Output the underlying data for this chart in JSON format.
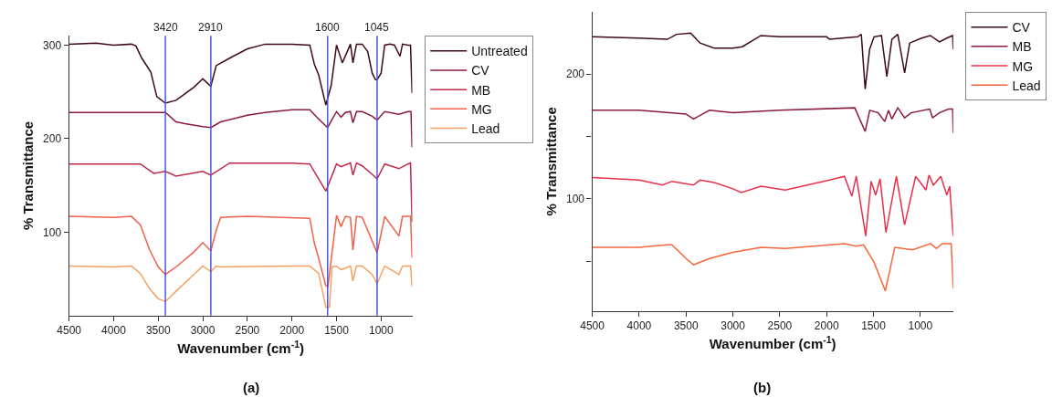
{
  "chart_data": [
    {
      "type": "line",
      "xlabel": "Wavenumber (cm$^{-1}$)",
      "ylabel": "% Transmittance",
      "xlim": [
        4500,
        650
      ],
      "ylim": [
        11,
        310
      ],
      "xticks": [
        4500,
        4000,
        3500,
        3000,
        2500,
        2000,
        1500,
        1000
      ],
      "yticks": [
        100,
        200,
        300
      ],
      "legend": "top right",
      "series": [
        {
          "name": "Untreated",
          "color": "#3d0a14",
          "x": [
            4500,
            4200,
            4000,
            3800,
            3750,
            3684,
            3583,
            3516,
            3420,
            3300,
            3100,
            3000,
            2910,
            2850,
            2700,
            2500,
            2300,
            2000,
            1800,
            1750,
            1700,
            1620,
            1560,
            1500,
            1435,
            1380,
            1344,
            1316,
            1276,
            1212,
            1150,
            1100,
            1064,
            1045,
            1000,
            960,
            900,
            850,
            788,
            760,
            700,
            670,
            653
          ],
          "values": [
            301,
            302,
            300,
            301,
            299,
            286,
            271,
            245,
            238,
            241,
            255,
            264,
            256,
            278,
            286,
            296,
            301,
            301,
            300,
            280,
            268,
            236,
            257,
            300,
            281,
            293,
            301,
            281,
            301,
            301,
            293,
            270,
            263,
            263,
            270,
            300,
            301,
            300,
            288,
            301,
            300,
            300,
            249
          ]
        },
        {
          "name": "CV",
          "color": "#8b1a3a",
          "x": [
            4500,
            4000,
            3600,
            3420,
            3300,
            3200,
            3000,
            2910,
            2800,
            2500,
            2300,
            2000,
            1800,
            1700,
            1600,
            1500,
            1450,
            1400,
            1344,
            1316,
            1276,
            1212,
            1100,
            1045,
            960,
            800,
            700,
            665,
            653
          ],
          "values": [
            228,
            228,
            228,
            228,
            218,
            216,
            213,
            212,
            218,
            225,
            228,
            231,
            231,
            221,
            212,
            229,
            223,
            228,
            229,
            217,
            229,
            229,
            224,
            220,
            229,
            226,
            229,
            229,
            191
          ]
        },
        {
          "name": "MB",
          "color": "#c0284a",
          "x": [
            4500,
            4000,
            3700,
            3550,
            3420,
            3300,
            3000,
            2910,
            2700,
            2000,
            1800,
            1700,
            1620,
            1500,
            1450,
            1344,
            1316,
            1276,
            1212,
            1100,
            1045,
            960,
            800,
            700,
            670,
            653
          ],
          "values": [
            173,
            173,
            173,
            163,
            165,
            160,
            165,
            161,
            174,
            174,
            173,
            157,
            144,
            173,
            170,
            174,
            161,
            174,
            171,
            162,
            157,
            173,
            168,
            173,
            174,
            111
          ]
        },
        {
          "name": "MG",
          "color": "#f0604a",
          "x": [
            4500,
            4000,
            3800,
            3700,
            3600,
            3500,
            3420,
            3300,
            3100,
            3000,
            2910,
            2850,
            2800,
            2500,
            1800,
            1750,
            1700,
            1620,
            1597,
            1500,
            1450,
            1400,
            1344,
            1316,
            1276,
            1212,
            1150,
            1045,
            960,
            800,
            760,
            670,
            653
          ],
          "values": [
            117,
            116,
            117,
            108,
            82,
            63,
            55,
            63,
            79,
            89,
            80,
            102,
            116,
            117,
            115,
            89,
            72,
            43,
            42,
            118,
            106,
            117,
            116,
            81,
            117,
            116,
            102,
            78,
            117,
            96,
            117,
            117,
            73
          ]
        },
        {
          "name": "Lead",
          "color": "#f7a060",
          "x": [
            4500,
            4000,
            3800,
            3700,
            3600,
            3500,
            3420,
            3300,
            3100,
            3000,
            2910,
            2850,
            2800,
            2000,
            1800,
            1700,
            1620,
            1580,
            1550,
            1500,
            1450,
            1344,
            1316,
            1276,
            1212,
            1100,
            1045,
            960,
            800,
            760,
            670,
            653
          ],
          "values": [
            64,
            63,
            64,
            56,
            40,
            29,
            26,
            37,
            55,
            64,
            58,
            64,
            63,
            64,
            64,
            56,
            20,
            20,
            63,
            64,
            60,
            64,
            48,
            64,
            64,
            55,
            45,
            64,
            55,
            64,
            64,
            42
          ]
        }
      ],
      "ref_lines": [
        {
          "axis": "x",
          "value": 3420,
          "label": "3420",
          "color": "#4a5ad8"
        },
        {
          "axis": "x",
          "value": 2910,
          "label": "2910",
          "color": "#4a5ad8"
        },
        {
          "axis": "x",
          "value": 1600,
          "label": "1600",
          "color": "#4a5ad8"
        },
        {
          "axis": "x",
          "value": 1045,
          "label": "1045",
          "color": "#4a5ad8"
        }
      ],
      "annotations": [
        "(a)"
      ]
    },
    {
      "type": "line",
      "xlabel": "Wavenumber (cm$^{-1}$)",
      "ylabel": "% Transmittance",
      "xlim": [
        4500,
        650
      ],
      "ylim": [
        10,
        250
      ],
      "xticks": [
        4500,
        4000,
        3500,
        3000,
        2500,
        2000,
        1500,
        1000
      ],
      "yticks": [
        {
          "value": 50,
          "label": null
        },
        100,
        {
          "value": 150,
          "label": null
        },
        200
      ],
      "legend": "top right",
      "series": [
        {
          "name": "CV",
          "color": "#3d0a14",
          "x": [
            4500,
            4000,
            3700,
            3600,
            3450,
            3350,
            3200,
            3000,
            2900,
            2700,
            2500,
            2000,
            1969,
            1668,
            1630,
            1589,
            1541,
            1494,
            1415,
            1358,
            1304,
            1241,
            1168,
            1114,
            987,
            893,
            797,
            718,
            656,
            650
          ],
          "values": [
            230,
            229,
            228,
            232,
            233,
            225,
            221,
            221,
            222,
            231,
            230,
            230,
            228,
            230,
            232,
            188,
            220,
            230,
            231,
            198,
            228,
            232,
            201,
            225,
            229,
            231,
            226,
            229,
            231,
            220
          ]
        },
        {
          "name": "MB",
          "color": "#8b1a3a",
          "x": [
            4500,
            4000,
            3500,
            3420,
            3250,
            3000,
            2500,
            1700,
            1589,
            1540,
            1450,
            1380,
            1340,
            1304,
            1241,
            1168,
            1100,
            900,
            870,
            797,
            700,
            656,
            650
          ],
          "values": [
            171,
            171,
            168,
            164,
            171,
            169,
            171,
            173,
            154,
            171,
            169,
            162,
            171,
            164,
            173,
            165,
            169,
            172,
            165,
            169,
            172,
            172,
            153
          ]
        },
        {
          "name": "MG",
          "color": "#e8304a",
          "x": [
            4500,
            4000,
            3750,
            3650,
            3420,
            3350,
            3200,
            3000,
            2910,
            2700,
            2443,
            1969,
            1810,
            1731,
            1684,
            1583,
            1525,
            1477,
            1430,
            1367,
            1256,
            1168,
            1050,
            940,
            908,
            861,
            782,
            718,
            687,
            650
          ],
          "values": [
            117,
            115,
            111,
            114,
            111,
            115,
            113,
            108,
            105,
            110,
            107,
            115,
            118,
            102,
            118,
            70,
            114,
            103,
            116,
            73,
            118,
            79,
            118,
            107,
            119,
            111,
            118,
            103,
            110,
            70
          ]
        },
        {
          "name": "Lead",
          "color": "#f7663a",
          "x": [
            4500,
            4000,
            3700,
            3650,
            3500,
            3420,
            3250,
            3000,
            2700,
            2443,
            1810,
            1684,
            1605,
            1494,
            1374,
            1273,
            1082,
            893,
            829,
            766,
            671,
            650
          ],
          "values": [
            61,
            61,
            63,
            63,
            52,
            47,
            52,
            57,
            61,
            60,
            64,
            62,
            63,
            49,
            26,
            61,
            59,
            64,
            60,
            64,
            64,
            28
          ]
        }
      ],
      "annotations": [
        "(b)"
      ]
    }
  ]
}
